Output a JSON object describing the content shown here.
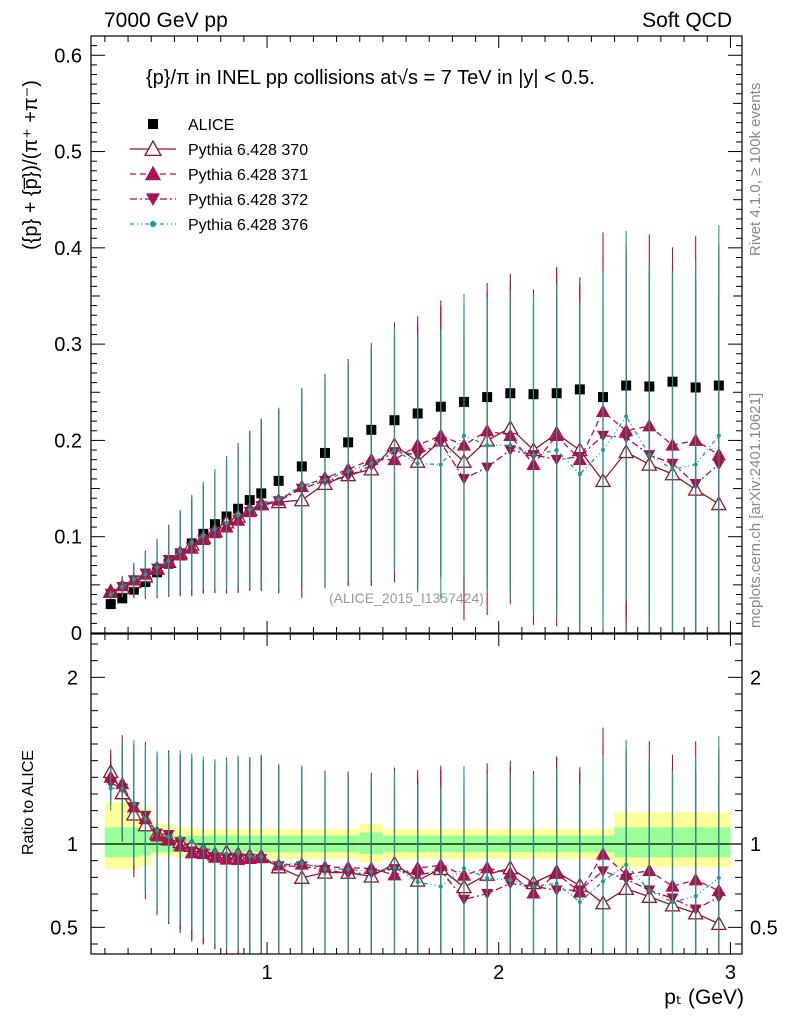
{
  "header": {
    "left": "7000 GeV pp",
    "right": "Soft QCD"
  },
  "side_labels": {
    "rivet": "Rivet 4.1.0, ≥ 100k events",
    "mcplots": "mcplots.cern.ch [arXiv:2401.10621]"
  },
  "colors": {
    "alice": "#000000",
    "py370": "#8b1a2b",
    "py371": "#b0124f",
    "py372": "#a3124d",
    "py376": "#14a090",
    "band_yellow": "#ffff99",
    "band_green": "#99ff99"
  },
  "chart_data": [
    {
      "type": "scatter",
      "panel": "main",
      "title": "{p}/π in INEL pp collisions at√s =  7 TeV in |y| < 0.5.",
      "watermark": "(ALICE_2015_I1357424)",
      "ylabel": "({p} + {p̅})/(π⁺ +π⁻)",
      "xlim": [
        0.24,
        3.05
      ],
      "ylim": [
        0.0,
        0.62
      ],
      "x_ticks": [
        1,
        2,
        3
      ],
      "y_ticks": [
        0,
        0.1,
        0.2,
        0.3,
        0.4,
        0.5,
        0.6
      ],
      "y_tick_labels": [
        "0",
        "0.1",
        "0.2",
        "0.3",
        "0.4",
        "0.5",
        "0.6"
      ],
      "x": [
        0.325,
        0.375,
        0.425,
        0.475,
        0.525,
        0.575,
        0.625,
        0.675,
        0.725,
        0.775,
        0.825,
        0.875,
        0.925,
        0.975,
        1.05,
        1.15,
        1.25,
        1.35,
        1.45,
        1.55,
        1.65,
        1.75,
        1.85,
        1.95,
        2.05,
        2.15,
        2.25,
        2.35,
        2.45,
        2.55,
        2.65,
        2.75,
        2.85,
        2.95
      ],
      "series": [
        {
          "name": "ALICE",
          "marker": "square",
          "values": [
            0.03,
            0.036,
            0.045,
            0.053,
            0.063,
            0.072,
            0.082,
            0.093,
            0.103,
            0.113,
            0.121,
            0.129,
            0.138,
            0.145,
            0.158,
            0.173,
            0.187,
            0.198,
            0.211,
            0.221,
            0.228,
            0.235,
            0.24,
            0.245,
            0.249,
            0.248,
            0.249,
            0.253,
            0.245,
            0.257,
            0.256,
            0.261,
            0.255,
            0.257
          ]
        },
        {
          "name": "Pythia 6.428 370",
          "marker": "triangle-open",
          "line": "solid",
          "values": [
            0.043,
            0.047,
            0.053,
            0.059,
            0.067,
            0.074,
            0.083,
            0.092,
            0.099,
            0.106,
            0.115,
            0.121,
            0.128,
            0.134,
            0.136,
            0.138,
            0.155,
            0.164,
            0.17,
            0.195,
            0.178,
            0.2,
            0.178,
            0.2,
            0.213,
            0.19,
            0.207,
            0.19,
            0.158,
            0.188,
            0.175,
            0.165,
            0.149,
            0.134
          ]
        },
        {
          "name": "Pythia 6.428 371",
          "marker": "triangle-up",
          "line": "dashed",
          "values": [
            0.042,
            0.049,
            0.055,
            0.061,
            0.066,
            0.074,
            0.081,
            0.088,
            0.097,
            0.104,
            0.11,
            0.117,
            0.126,
            0.133,
            0.138,
            0.152,
            0.161,
            0.17,
            0.18,
            0.18,
            0.195,
            0.205,
            0.195,
            0.21,
            0.205,
            0.175,
            0.205,
            0.18,
            0.23,
            0.21,
            0.215,
            0.195,
            0.2,
            0.185
          ]
        },
        {
          "name": "Pythia 6.428 372",
          "marker": "triangle-down",
          "line": "dashdot",
          "values": [
            0.041,
            0.048,
            0.055,
            0.062,
            0.067,
            0.076,
            0.083,
            0.089,
            0.097,
            0.104,
            0.111,
            0.118,
            0.126,
            0.132,
            0.137,
            0.15,
            0.158,
            0.163,
            0.174,
            0.188,
            0.185,
            0.198,
            0.16,
            0.172,
            0.19,
            0.185,
            0.18,
            0.183,
            0.205,
            0.203,
            0.185,
            0.176,
            0.155,
            0.175
          ]
        },
        {
          "name": "Pythia 6.428 376",
          "marker": "dot",
          "line": "dashdotdot",
          "values": [
            0.04,
            0.048,
            0.056,
            0.061,
            0.068,
            0.075,
            0.085,
            0.094,
            0.101,
            0.108,
            0.114,
            0.122,
            0.128,
            0.134,
            0.139,
            0.153,
            0.159,
            0.168,
            0.176,
            0.19,
            0.176,
            0.175,
            0.205,
            0.195,
            0.195,
            0.185,
            0.19,
            0.165,
            0.19,
            0.225,
            0.185,
            0.17,
            0.175,
            0.205
          ]
        }
      ]
    },
    {
      "type": "line",
      "panel": "ratio",
      "ylabel": "Ratio to ALICE",
      "xlabel": "pₜ (GeV)",
      "xlim": [
        0.24,
        3.05
      ],
      "ylim": [
        0.34,
        2.26
      ],
      "x_ticks": [
        1,
        2,
        3
      ],
      "y_ticks": [
        0.5,
        1,
        2
      ],
      "y_tick_labels": [
        "0.5",
        "1",
        "2"
      ],
      "band_edges": [
        0.3,
        0.45,
        0.5,
        0.6,
        0.7,
        0.8,
        1.0,
        1.2,
        1.4,
        1.5,
        2.0,
        2.5,
        3.0
      ],
      "yellow_band": {
        "low": [
          0.85,
          0.87,
          0.93,
          0.92,
          0.91,
          0.91,
          0.91,
          0.91,
          0.89,
          0.91,
          0.91,
          0.86
        ],
        "high": [
          1.25,
          1.22,
          1.12,
          1.1,
          1.09,
          1.09,
          1.09,
          1.09,
          1.12,
          1.09,
          1.09,
          1.19
        ]
      },
      "green_band": {
        "low": [
          0.92,
          0.93,
          0.95,
          0.95,
          0.95,
          0.95,
          0.95,
          0.95,
          0.94,
          0.95,
          0.95,
          0.92
        ],
        "high": [
          1.1,
          1.1,
          1.06,
          1.05,
          1.05,
          1.05,
          1.05,
          1.05,
          1.07,
          1.05,
          1.05,
          1.1
        ]
      }
    }
  ]
}
